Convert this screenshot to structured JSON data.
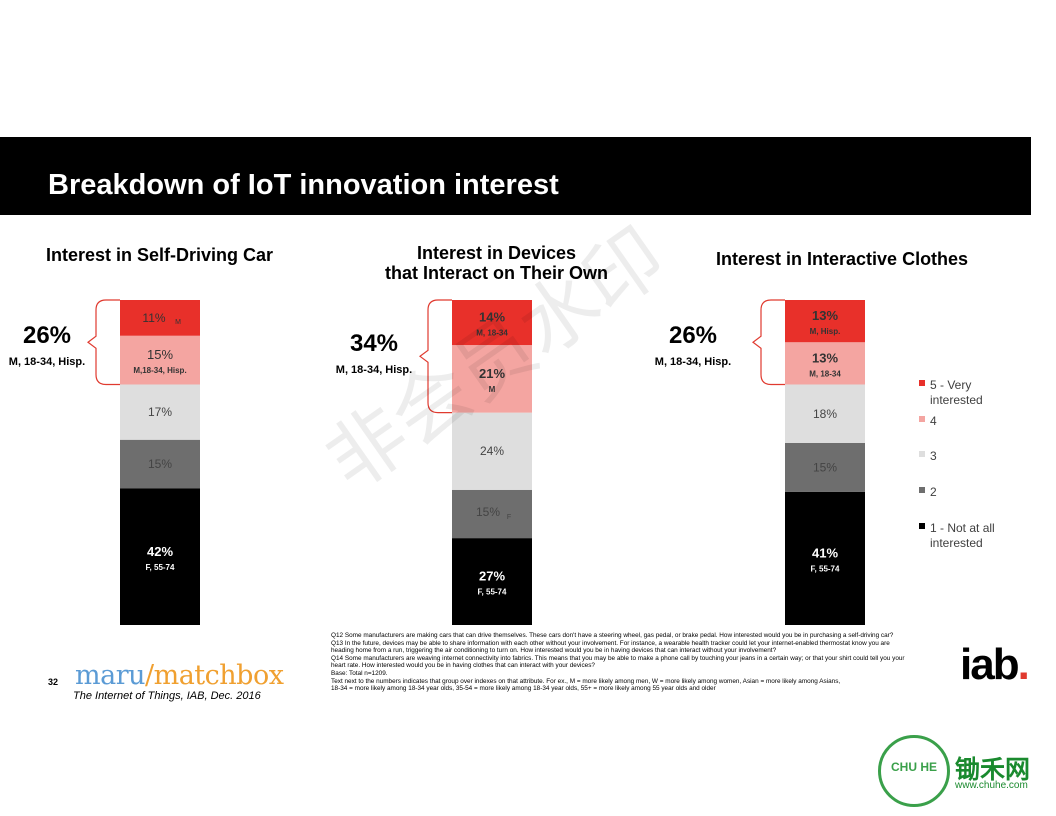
{
  "slide": {
    "title": "Breakdown of IoT innovation interest",
    "page_number": "32"
  },
  "chart_data": [
    {
      "type": "bar",
      "stacked": true,
      "title": "Interest in Self-Driving Car",
      "segments": [
        {
          "value": 42,
          "label": "42%",
          "sub": "F, 55-74"
        },
        {
          "value": 15,
          "label": "15%",
          "sub": ""
        },
        {
          "value": 17,
          "label": "17%",
          "sub": ""
        },
        {
          "value": 15,
          "label": "15%",
          "sub": "M,18-34, Hisp."
        },
        {
          "value": 11,
          "label": "11%",
          "sub": "M"
        }
      ],
      "callout": {
        "value": "26%",
        "sub": "M, 18-34, Hisp."
      }
    },
    {
      "type": "bar",
      "stacked": true,
      "title": "Interest in Devices that Interact on Their Own",
      "title_lines": [
        "Interest in Devices",
        "that Interact on Their Own"
      ],
      "segments": [
        {
          "value": 27,
          "label": "27%",
          "sub": "F, 55-74"
        },
        {
          "value": 15,
          "label": "15%",
          "sub": "F"
        },
        {
          "value": 24,
          "label": "24%",
          "sub": ""
        },
        {
          "value": 21,
          "label": "21%",
          "sub": "M"
        },
        {
          "value": 14,
          "label": "14%",
          "sub": "M, 18-34"
        }
      ],
      "callout": {
        "value": "34%",
        "sub": "M, 18-34, Hisp."
      }
    },
    {
      "type": "bar",
      "stacked": true,
      "title": "Interest in Interactive Clothes",
      "segments": [
        {
          "value": 41,
          "label": "41%",
          "sub": "F, 55-74"
        },
        {
          "value": 15,
          "label": "15%",
          "sub": ""
        },
        {
          "value": 18,
          "label": "18%",
          "sub": ""
        },
        {
          "value": 13,
          "label": "13%",
          "sub": "M, 18-34"
        },
        {
          "value": 13,
          "label": "13%",
          "sub": "M, Hisp."
        }
      ],
      "callout": {
        "value": "26%",
        "sub": "M, 18-34, Hisp."
      }
    }
  ],
  "legend": {
    "placement": "right",
    "items": [
      {
        "label_lines": [
          "5 - Very",
          "interested"
        ],
        "color": "#e8302a"
      },
      {
        "label_lines": [
          "4"
        ],
        "color": "#f4a5a1"
      },
      {
        "label_lines": [
          "3"
        ],
        "color": "#dedede"
      },
      {
        "label_lines": [
          "2"
        ],
        "color": "#6e6e6e"
      },
      {
        "label_lines": [
          "1 - Not at all",
          "interested"
        ],
        "color": "#000000"
      }
    ]
  },
  "segment_colors": [
    "#000000",
    "#6e6e6e",
    "#dedede",
    "#f4a5a1",
    "#e8302a"
  ],
  "segment_text_colors": [
    "#ffffff",
    "#444444",
    "#444444",
    "#333333",
    "#333333"
  ],
  "footnotes": [
    "Q12 Some manufacturers are making cars that can drive themselves. These cars don't have a steering wheel, gas pedal, or brake pedal. How interested would you be in purchasing a self-driving car?",
    "Q13 In the future, devices may be able to share information with each other without your involvement. For instance, a wearable health tracker could let your internet-enabled thermostat know you are",
    "heading home from a run, triggering the air conditioning to turn on. How interested would you be in having devices that can interact without your involvement?",
    "Q14 Some manufacturers are weaving internet connectivity into fabrics. This means that you may be able to make a phone call by touching your jeans in a certain way; or that your shirt could tell you your",
    "heart rate. How interested would you be in having clothes that can interact with your devices?",
    "Base: Total n=1209.",
    "Text next to the numbers indicates that group over indexes on that attribute. For ex., M = more likely among men, W = more likely among women, Asian = more likely among Asians,",
    "18-34 = more likely among 18-34 year olds, 35-54 = more likely among 18-34 year olds, 55+ = more likely among 55 year olds and older"
  ],
  "source": {
    "logo_left": "maru",
    "logo_slash": "/",
    "logo_right": "matchbox",
    "citation": "The Internet of Things, IAB, Dec. 2016",
    "iab_logo": "iab",
    "iab_dot": "."
  },
  "watermark": {
    "diagonal": "非会员水印",
    "brand": "锄禾网",
    "url": "www.chuhe.com",
    "seal": "CHU HE"
  }
}
